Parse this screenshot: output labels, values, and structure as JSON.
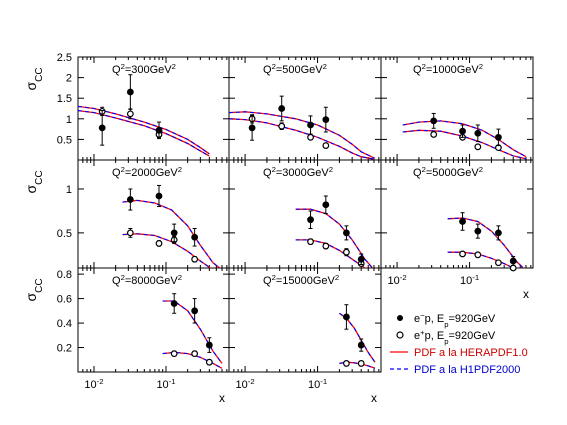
{
  "chart_data": {
    "type": "scatter",
    "x_scale": "log",
    "y_label": "σ_CC",
    "x_label": "x",
    "x_tick_labels": [
      {
        "value": 0.01,
        "base": "10",
        "exp": "-2"
      },
      {
        "value": 0.1,
        "base": "10",
        "exp": "-1"
      }
    ],
    "colors": {
      "herapdf": "#ff0000",
      "h1pdf_dash": "#0000ff",
      "points": "#000000"
    },
    "legend": {
      "placement": "bottom-right",
      "entries": [
        {
          "key": "em",
          "marker": "filled-circle",
          "parts": [
            [
              "e",
              "n"
            ],
            [
              "−",
              "sup"
            ],
            [
              "p, E",
              "n"
            ],
            [
              "p",
              "sub"
            ],
            [
              "=920GeV",
              "n"
            ]
          ]
        },
        {
          "key": "ep",
          "marker": "open-circle",
          "parts": [
            [
              "e",
              "n"
            ],
            [
              "+",
              "sup"
            ],
            [
              "p, E",
              "n"
            ],
            [
              "p",
              "sub"
            ],
            [
              "=920GeV",
              "n"
            ]
          ]
        },
        {
          "key": "hera",
          "marker": "solid-line",
          "color": "#ff0000",
          "parts": [
            [
              "PDF a la HERAPDF1.0",
              "n"
            ]
          ]
        },
        {
          "key": "h1",
          "marker": "dashed-line",
          "color": "#0000ff",
          "parts": [
            [
              "PDF a la H1PDF2000",
              "n"
            ]
          ]
        }
      ]
    },
    "rows": [
      {
        "ylim": [
          0,
          2.5
        ],
        "yticks": [
          0.5,
          1,
          1.5,
          2,
          2.5
        ],
        "ytick_labels": [
          "0.5",
          "1",
          "1.5",
          "2",
          "2.5"
        ]
      },
      {
        "ylim": [
          0.1,
          1.33
        ],
        "yticks": [
          0.5,
          1
        ],
        "ytick_labels": [
          "0.5",
          "1"
        ]
      },
      {
        "ylim": [
          0,
          0.85
        ],
        "yticks": [
          0.2,
          0.4,
          0.6,
          0.8
        ],
        "ytick_labels": [
          "0.2",
          "0.4",
          "0.6",
          "0.8"
        ]
      }
    ],
    "xlim": [
      0.006,
      0.75
    ],
    "panels": [
      {
        "Q2": "300",
        "row": 0,
        "col": 0,
        "em_pts": [
          {
            "x": 0.013,
            "y": 0.78,
            "err": 0.42
          },
          {
            "x": 0.032,
            "y": 1.65,
            "err": 0.42
          },
          {
            "x": 0.08,
            "y": 0.72,
            "err": 0.2
          }
        ],
        "ep_pts": [
          {
            "x": 0.013,
            "y": 1.18,
            "err": 0.1
          },
          {
            "x": 0.032,
            "y": 1.12,
            "err": 0.12
          },
          {
            "x": 0.08,
            "y": 0.62,
            "err": 0.08
          }
        ],
        "em_curve": [
          [
            0.006,
            1.3
          ],
          [
            0.01,
            1.25
          ],
          [
            0.02,
            1.12
          ],
          [
            0.05,
            0.92
          ],
          [
            0.1,
            0.74
          ],
          [
            0.2,
            0.5
          ],
          [
            0.3,
            0.3
          ],
          [
            0.4,
            0.15
          ]
        ],
        "ep_curve": [
          [
            0.006,
            1.2
          ],
          [
            0.01,
            1.15
          ],
          [
            0.02,
            1.02
          ],
          [
            0.05,
            0.83
          ],
          [
            0.1,
            0.64
          ],
          [
            0.2,
            0.4
          ],
          [
            0.3,
            0.22
          ],
          [
            0.4,
            0.1
          ]
        ]
      },
      {
        "Q2": "500",
        "row": 0,
        "col": 1,
        "em_pts": [
          {
            "x": 0.0125,
            "y": 0.78,
            "err": 0.3
          },
          {
            "x": 0.032,
            "y": 1.25,
            "err": 0.3
          },
          {
            "x": 0.08,
            "y": 0.85,
            "err": 0.22
          },
          {
            "x": 0.13,
            "y": 0.98,
            "err": 0.3
          }
        ],
        "ep_pts": [
          {
            "x": 0.0125,
            "y": 1.0,
            "err": 0.1
          },
          {
            "x": 0.032,
            "y": 0.82,
            "err": 0.08
          },
          {
            "x": 0.08,
            "y": 0.55,
            "err": 0.05
          },
          {
            "x": 0.13,
            "y": 0.35,
            "err": 0.05
          }
        ],
        "em_curve": [
          [
            0.006,
            1.15
          ],
          [
            0.01,
            1.17
          ],
          [
            0.02,
            1.12
          ],
          [
            0.05,
            1.0
          ],
          [
            0.1,
            0.85
          ],
          [
            0.2,
            0.6
          ],
          [
            0.3,
            0.38
          ],
          [
            0.4,
            0.2
          ],
          [
            0.6,
            0.05
          ]
        ],
        "ep_curve": [
          [
            0.006,
            1.0
          ],
          [
            0.01,
            0.98
          ],
          [
            0.02,
            0.9
          ],
          [
            0.05,
            0.72
          ],
          [
            0.1,
            0.55
          ],
          [
            0.2,
            0.33
          ],
          [
            0.3,
            0.17
          ],
          [
            0.4,
            0.08
          ],
          [
            0.6,
            0.02
          ]
        ]
      },
      {
        "Q2": "1000",
        "row": 0,
        "col": 2,
        "em_pts": [
          {
            "x": 0.032,
            "y": 0.95,
            "err": 0.18
          },
          {
            "x": 0.08,
            "y": 0.7,
            "err": 0.15
          },
          {
            "x": 0.13,
            "y": 0.65,
            "err": 0.2
          },
          {
            "x": 0.25,
            "y": 0.55,
            "err": 0.2
          }
        ],
        "ep_pts": [
          {
            "x": 0.032,
            "y": 0.62,
            "err": 0.05
          },
          {
            "x": 0.08,
            "y": 0.55,
            "err": 0.05
          },
          {
            "x": 0.13,
            "y": 0.32,
            "err": 0.05
          },
          {
            "x": 0.25,
            "y": 0.3,
            "err": 0.05
          }
        ],
        "em_curve": [
          [
            0.012,
            0.85
          ],
          [
            0.02,
            0.92
          ],
          [
            0.04,
            0.95
          ],
          [
            0.08,
            0.88
          ],
          [
            0.15,
            0.72
          ],
          [
            0.25,
            0.5
          ],
          [
            0.4,
            0.25
          ],
          [
            0.6,
            0.08
          ]
        ],
        "ep_curve": [
          [
            0.012,
            0.68
          ],
          [
            0.02,
            0.72
          ],
          [
            0.04,
            0.7
          ],
          [
            0.08,
            0.58
          ],
          [
            0.15,
            0.42
          ],
          [
            0.25,
            0.25
          ],
          [
            0.4,
            0.1
          ],
          [
            0.6,
            0.03
          ]
        ]
      },
      {
        "Q2": "2000",
        "row": 1,
        "col": 0,
        "em_pts": [
          {
            "x": 0.032,
            "y": 0.88,
            "err": 0.12
          },
          {
            "x": 0.08,
            "y": 0.92,
            "err": 0.12
          },
          {
            "x": 0.13,
            "y": 0.5,
            "err": 0.1
          },
          {
            "x": 0.25,
            "y": 0.45,
            "err": 0.1
          }
        ],
        "ep_pts": [
          {
            "x": 0.032,
            "y": 0.5,
            "err": 0.05
          },
          {
            "x": 0.08,
            "y": 0.38,
            "err": 0.03
          },
          {
            "x": 0.13,
            "y": 0.42,
            "err": 0.04
          },
          {
            "x": 0.25,
            "y": 0.2,
            "err": 0.03
          }
        ],
        "em_curve": [
          [
            0.025,
            0.85
          ],
          [
            0.04,
            0.87
          ],
          [
            0.07,
            0.84
          ],
          [
            0.12,
            0.76
          ],
          [
            0.2,
            0.58
          ],
          [
            0.3,
            0.36
          ],
          [
            0.45,
            0.16
          ],
          [
            0.6,
            0.08
          ]
        ],
        "ep_curve": [
          [
            0.025,
            0.48
          ],
          [
            0.04,
            0.49
          ],
          [
            0.07,
            0.47
          ],
          [
            0.12,
            0.4
          ],
          [
            0.2,
            0.29
          ],
          [
            0.3,
            0.18
          ],
          [
            0.45,
            0.08
          ],
          [
            0.6,
            0.04
          ]
        ]
      },
      {
        "Q2": "3000",
        "row": 1,
        "col": 1,
        "em_pts": [
          {
            "x": 0.08,
            "y": 0.65,
            "err": 0.1
          },
          {
            "x": 0.13,
            "y": 0.82,
            "err": 0.1
          },
          {
            "x": 0.25,
            "y": 0.5,
            "err": 0.08
          },
          {
            "x": 0.4,
            "y": 0.2,
            "err": 0.06
          }
        ],
        "ep_pts": [
          {
            "x": 0.08,
            "y": 0.4,
            "err": 0.03
          },
          {
            "x": 0.13,
            "y": 0.35,
            "err": 0.03
          },
          {
            "x": 0.25,
            "y": 0.28,
            "err": 0.04
          },
          {
            "x": 0.4,
            "y": 0.15,
            "err": 0.02
          }
        ],
        "em_curve": [
          [
            0.05,
            0.77
          ],
          [
            0.08,
            0.77
          ],
          [
            0.13,
            0.72
          ],
          [
            0.2,
            0.6
          ],
          [
            0.3,
            0.42
          ],
          [
            0.45,
            0.2
          ],
          [
            0.6,
            0.08
          ]
        ],
        "ep_curve": [
          [
            0.05,
            0.42
          ],
          [
            0.08,
            0.42
          ],
          [
            0.13,
            0.38
          ],
          [
            0.2,
            0.3
          ],
          [
            0.3,
            0.2
          ],
          [
            0.45,
            0.1
          ],
          [
            0.6,
            0.04
          ]
        ]
      },
      {
        "Q2": "5000",
        "row": 1,
        "col": 2,
        "em_pts": [
          {
            "x": 0.08,
            "y": 0.63,
            "err": 0.1
          },
          {
            "x": 0.13,
            "y": 0.52,
            "err": 0.08
          },
          {
            "x": 0.25,
            "y": 0.5,
            "err": 0.08
          },
          {
            "x": 0.4,
            "y": 0.18,
            "err": 0.05
          }
        ],
        "ep_pts": [
          {
            "x": 0.08,
            "y": 0.26,
            "err": 0.02
          },
          {
            "x": 0.13,
            "y": 0.25,
            "err": 0.02
          },
          {
            "x": 0.25,
            "y": 0.16,
            "err": 0.02
          },
          {
            "x": 0.4,
            "y": 0.1,
            "err": 0.02
          }
        ],
        "em_curve": [
          [
            0.05,
            0.66
          ],
          [
            0.08,
            0.67
          ],
          [
            0.13,
            0.63
          ],
          [
            0.2,
            0.52
          ],
          [
            0.3,
            0.36
          ],
          [
            0.45,
            0.17
          ],
          [
            0.6,
            0.07
          ]
        ],
        "ep_curve": [
          [
            0.05,
            0.28
          ],
          [
            0.08,
            0.28
          ],
          [
            0.13,
            0.26
          ],
          [
            0.2,
            0.21
          ],
          [
            0.3,
            0.15
          ],
          [
            0.45,
            0.08
          ],
          [
            0.6,
            0.03
          ]
        ]
      },
      {
        "Q2": "8000",
        "row": 2,
        "col": 0,
        "em_pts": [
          {
            "x": 0.13,
            "y": 0.56,
            "err": 0.08
          },
          {
            "x": 0.25,
            "y": 0.5,
            "err": 0.1
          },
          {
            "x": 0.4,
            "y": 0.22,
            "err": 0.06
          }
        ],
        "ep_pts": [
          {
            "x": 0.13,
            "y": 0.15,
            "err": 0.02
          },
          {
            "x": 0.25,
            "y": 0.15,
            "err": 0.02
          },
          {
            "x": 0.4,
            "y": 0.08,
            "err": 0.02
          }
        ],
        "em_curve": [
          [
            0.09,
            0.58
          ],
          [
            0.13,
            0.58
          ],
          [
            0.2,
            0.5
          ],
          [
            0.3,
            0.35
          ],
          [
            0.45,
            0.17
          ],
          [
            0.6,
            0.07
          ]
        ],
        "ep_curve": [
          [
            0.09,
            0.15
          ],
          [
            0.13,
            0.16
          ],
          [
            0.2,
            0.15
          ],
          [
            0.3,
            0.12
          ],
          [
            0.45,
            0.07
          ],
          [
            0.6,
            0.03
          ]
        ]
      },
      {
        "Q2": "15000",
        "row": 2,
        "col": 1,
        "em_pts": [
          {
            "x": 0.25,
            "y": 0.45,
            "err": 0.1
          },
          {
            "x": 0.4,
            "y": 0.22,
            "err": 0.05
          }
        ],
        "ep_pts": [
          {
            "x": 0.25,
            "y": 0.07,
            "err": 0.02
          },
          {
            "x": 0.4,
            "y": 0.07,
            "err": 0.02
          }
        ],
        "em_curve": [
          [
            0.2,
            0.48
          ],
          [
            0.25,
            0.44
          ],
          [
            0.32,
            0.36
          ],
          [
            0.4,
            0.26
          ],
          [
            0.5,
            0.16
          ],
          [
            0.62,
            0.08
          ]
        ],
        "ep_curve": [
          [
            0.2,
            0.07
          ],
          [
            0.25,
            0.08
          ],
          [
            0.32,
            0.075
          ],
          [
            0.4,
            0.065
          ],
          [
            0.5,
            0.05
          ],
          [
            0.62,
            0.03
          ]
        ]
      }
    ],
    "q2_label": {
      "prefix": "Q",
      "sup": "2",
      "unit": "GeV",
      "unit_sup": "2"
    }
  }
}
